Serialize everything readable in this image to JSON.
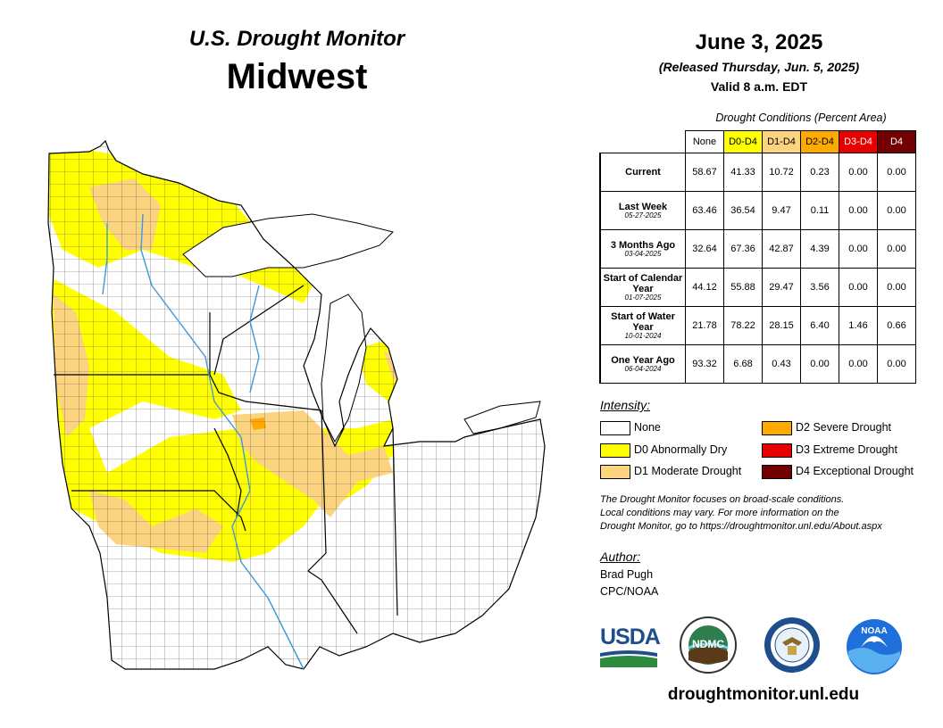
{
  "header": {
    "title": "U.S. Drought Monitor",
    "region": "Midwest"
  },
  "date_block": {
    "date": "June 3, 2025",
    "released": "(Released Thursday, Jun. 5, 2025)",
    "valid": "Valid 8 a.m. EDT"
  },
  "conditions_table": {
    "caption": "Drought Conditions (Percent Area)",
    "columns": [
      {
        "label": "None",
        "color": "#ffffff"
      },
      {
        "label": "D0-D4",
        "color": "#ffff00"
      },
      {
        "label": "D1-D4",
        "color": "#fcd37f"
      },
      {
        "label": "D2-D4",
        "color": "#ffaa00"
      },
      {
        "label": "D3-D4",
        "color": "#e60000"
      },
      {
        "label": "D4",
        "color": "#730000"
      }
    ],
    "rows": [
      {
        "label": "Current",
        "date": "",
        "values": [
          "58.67",
          "41.33",
          "10.72",
          "0.23",
          "0.00",
          "0.00"
        ]
      },
      {
        "label": "Last Week",
        "date": "05-27-2025",
        "values": [
          "63.46",
          "36.54",
          "9.47",
          "0.11",
          "0.00",
          "0.00"
        ]
      },
      {
        "label": "3 Months Ago",
        "date": "03-04-2025",
        "values": [
          "32.64",
          "67.36",
          "42.87",
          "4.39",
          "0.00",
          "0.00"
        ]
      },
      {
        "label": "Start of Calendar Year",
        "date": "01-07-2025",
        "values": [
          "44.12",
          "55.88",
          "29.47",
          "3.56",
          "0.00",
          "0.00"
        ]
      },
      {
        "label": "Start of Water Year",
        "date": "10-01-2024",
        "values": [
          "21.78",
          "78.22",
          "28.15",
          "6.40",
          "1.46",
          "0.66"
        ]
      },
      {
        "label": "One Year Ago",
        "date": "06-04-2024",
        "values": [
          "93.32",
          "6.68",
          "0.43",
          "0.00",
          "0.00",
          "0.00"
        ]
      }
    ]
  },
  "legend": {
    "title": "Intensity:",
    "items": [
      {
        "label": "None",
        "color": "#ffffff"
      },
      {
        "label": "D0 Abnormally Dry",
        "color": "#ffff00"
      },
      {
        "label": "D1 Moderate Drought",
        "color": "#fcd37f"
      },
      {
        "label": "D2 Severe Drought",
        "color": "#ffaa00"
      },
      {
        "label": "D3 Extreme Drought",
        "color": "#e60000"
      },
      {
        "label": "D4 Exceptional Drought",
        "color": "#730000"
      }
    ]
  },
  "note": {
    "line1": "The Drought Monitor focuses on broad-scale conditions.",
    "line2": "Local conditions may vary. For more information on the",
    "line3": "Drought Monitor, go to https://droughtmonitor.unl.edu/About.aspx"
  },
  "author": {
    "title": "Author:",
    "name": "Brad Pugh",
    "org": "CPC/NOAA"
  },
  "logos": {
    "usda": "USDA",
    "ndmc": "NDMC",
    "noaa": "NOAA"
  },
  "footer_url": "droughtmonitor.unl.edu"
}
